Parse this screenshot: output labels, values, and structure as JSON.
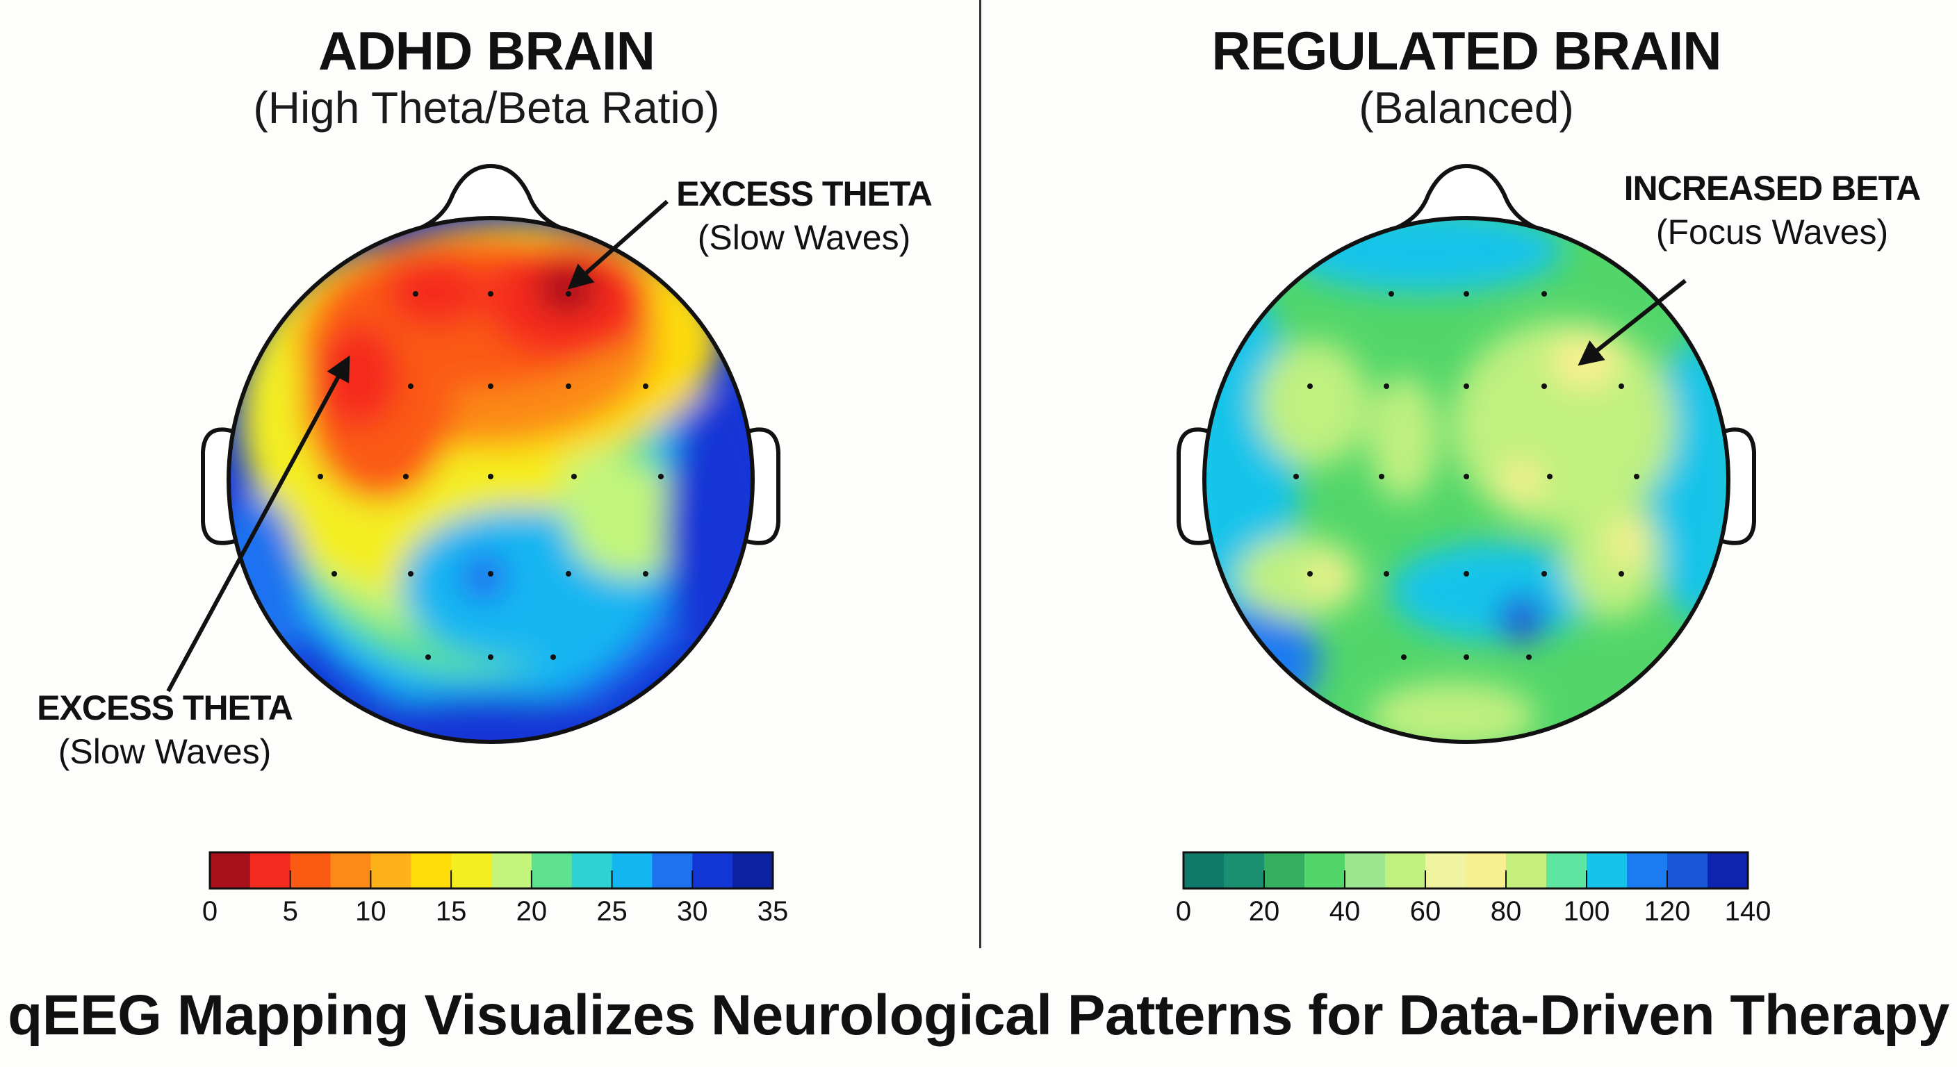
{
  "left_panel": {
    "title": "ADHD BRAIN",
    "subtitle": "(High Theta/Beta Ratio)",
    "annotations": [
      {
        "label": "EXCESS THETA",
        "note": "(Slow Waves)"
      },
      {
        "label": "EXCESS THETA",
        "note": "(Slow Waves)"
      }
    ],
    "colorbar": {
      "colors": [
        "#a8101c",
        "#f52a1e",
        "#fb5a12",
        "#fb8a18",
        "#fdb21a",
        "#fddc0a",
        "#f3ee20",
        "#c2f57a",
        "#5ee292",
        "#2ed2d2",
        "#14b6f2",
        "#1e72f0",
        "#1236d6",
        "#0c22a0"
      ],
      "min": 0,
      "max": 35,
      "ticks": [
        "0",
        "5",
        "10",
        "15",
        "20",
        "25",
        "30",
        "35"
      ]
    }
  },
  "right_panel": {
    "title": "REGULATED BRAIN",
    "subtitle": "(Balanced)",
    "annotations": [
      {
        "label": "INCREASED BETA",
        "note": "(Focus Waves)"
      }
    ],
    "colorbar": {
      "colors": [
        "#0e7a6a",
        "#1a9070",
        "#36b060",
        "#52d66a",
        "#9ce690",
        "#c0f080",
        "#f0f4a0",
        "#f8f090",
        "#c4ef7c",
        "#5ee6a0",
        "#16c4ea",
        "#1a7cf0",
        "#1a56d8",
        "#0c24b0"
      ],
      "min": 0,
      "max": 140,
      "ticks": [
        "0",
        "20",
        "40",
        "60",
        "80",
        "100",
        "120",
        "140"
      ]
    }
  },
  "footer": {
    "caption": "qEEG Mapping Visualizes Neurological Patterns for Data-Driven Therapy"
  }
}
